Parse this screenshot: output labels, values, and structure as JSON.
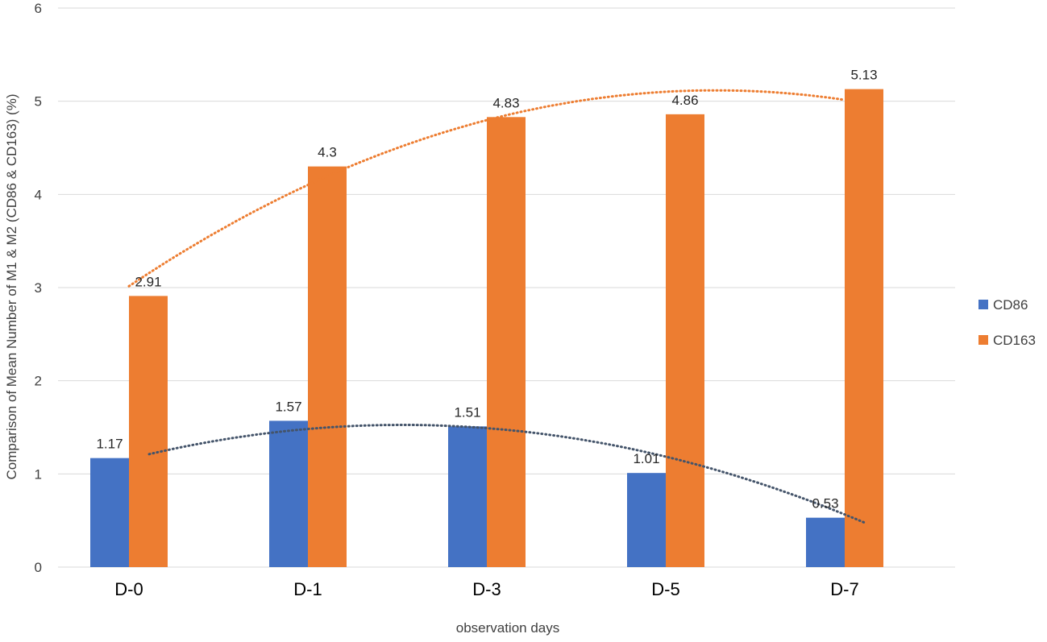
{
  "chart_data": {
    "type": "bar",
    "categories": [
      "D-0",
      "D-1",
      "D-3",
      "D-5",
      "D-7"
    ],
    "series": [
      {
        "name": "CD86",
        "values": [
          1.17,
          1.57,
          1.51,
          1.01,
          0.53
        ],
        "color": "#4472c4",
        "labels": [
          "1.17",
          "1.57",
          "1.51",
          "1.01",
          "0.53"
        ]
      },
      {
        "name": "CD163",
        "values": [
          2.91,
          4.3,
          4.83,
          4.86,
          5.13
        ],
        "color": "#ed7d31",
        "labels": [
          "2.91",
          "4.3",
          "4.83",
          "4.86",
          "5.13"
        ]
      }
    ],
    "trendlines": [
      {
        "series": "CD86",
        "type": "polynomial",
        "style": "dotted",
        "color": "#44546a"
      },
      {
        "series": "CD163",
        "type": "polynomial",
        "style": "dotted",
        "color": "#ed7d31"
      }
    ],
    "title": "",
    "xlabel": "observation days",
    "ylabel": "Comparison of Mean Number of M1 & M2 (CD86 & CD163) (%)",
    "ylim": [
      0,
      6
    ],
    "yticks": [
      "0",
      "1",
      "2",
      "3",
      "4",
      "5",
      "6"
    ],
    "grid": true,
    "legend": "right"
  }
}
